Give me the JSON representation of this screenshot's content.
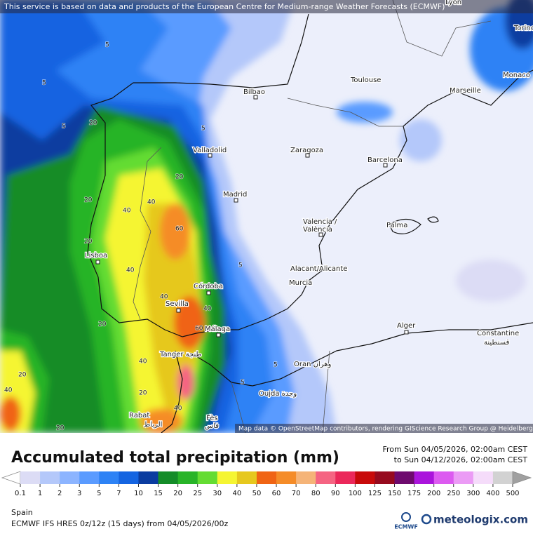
{
  "header": {
    "attribution": "This service is based on data and products of the European Centre for Medium-range Weather Forecasts (ECMWF)"
  },
  "map": {
    "cities": [
      "Lyon",
      "Torino",
      "Monaco",
      "Toulouse",
      "Marseille",
      "Bilbao",
      "Valladolid",
      "Zaragoza",
      "Barcelona",
      "Madrid",
      "Valencia /",
      "València",
      "Palma",
      "Lisboa",
      "Alacant/Alicante",
      "Murcia",
      "Córdoba",
      "Sevilla",
      "Málaga",
      "Alger",
      "Constantine",
      "قسنطينة",
      "Tanger طنجة",
      "Oran وهران",
      "Oujda وجدة",
      "Rabat",
      "الرباط",
      "Fès",
      "فاس"
    ],
    "contour_labels": [
      "5",
      "5",
      "5",
      "20",
      "5",
      "20",
      "40",
      "40",
      "20",
      "60",
      "20",
      "40",
      "5",
      "40",
      "40",
      "60",
      "20",
      "40",
      "20",
      "5",
      "5",
      "20",
      "40",
      "40",
      "20"
    ],
    "credit": "Map data © OpenStreetMap contributors, rendering GIScience Research Group @ Heidelberg University"
  },
  "legend": {
    "title": "Accumulated total precipitation (mm)",
    "period_from": "From Sun 04/05/2026, 02:00am CEST",
    "period_to": "to Sun 04/12/2026, 02:00am CEST",
    "labels": [
      "0.1",
      "1",
      "2",
      "3",
      "5",
      "7",
      "10",
      "15",
      "20",
      "25",
      "30",
      "40",
      "50",
      "60",
      "70",
      "80",
      "90",
      "100",
      "125",
      "150",
      "175",
      "200",
      "250",
      "300",
      "400",
      "500"
    ],
    "under_color": "#ffffff",
    "colors": [
      "#dcdcf5",
      "#b4c8fa",
      "#8cb4ff",
      "#5a9bff",
      "#2d82f5",
      "#1464e1",
      "#0a3ca0",
      "#148c28",
      "#28b428",
      "#64dc32",
      "#f5f532",
      "#e6c81e",
      "#f06414",
      "#f58c28",
      "#f5b478",
      "#f56482",
      "#eb285a",
      "#c80a0a",
      "#960a1e",
      "#6e0a6e",
      "#aa14dc",
      "#dc5af0",
      "#eb9bf5",
      "#f5dcfa",
      "#d2d2d2"
    ],
    "over_color": "#a0a0a0"
  },
  "footer": {
    "region": "Spain",
    "model": "ECMWF IFS HRES 0z/12z (15 days) from  04/05/2026/00z",
    "ecmwf": "ECMWF",
    "brand": "meteologix.com"
  }
}
